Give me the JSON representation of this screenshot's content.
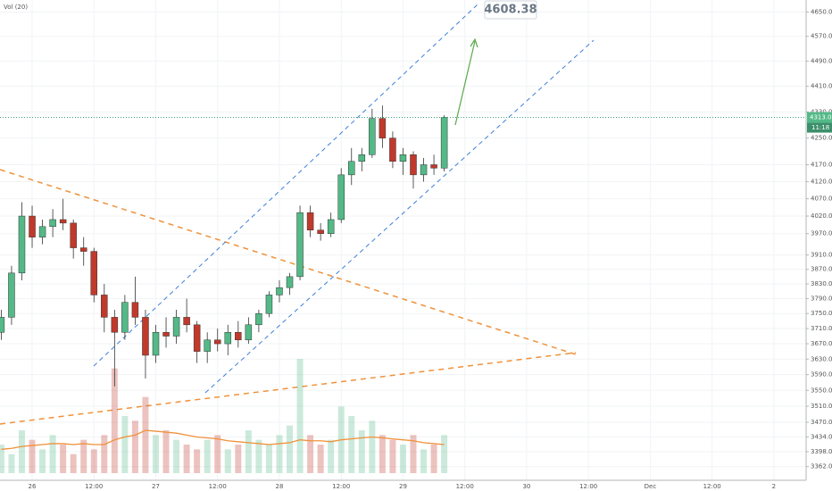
{
  "chart_data": {
    "type": "candlestick",
    "indicator_label": "Vol (20)",
    "annotation": 4608.38,
    "countdown": "11:18",
    "log_scale": true,
    "grid": true,
    "up_color": "#53b987",
    "down_color": "#c0392b",
    "volume_ma_color": "#f0913a",
    "ylim": [
      3340,
      4690
    ],
    "yticks": [
      {
        "value": 4650,
        "label": "4650.00"
      },
      {
        "value": 4570,
        "label": "4570.00"
      },
      {
        "value": 4490,
        "label": "4490.00"
      },
      {
        "value": 4410,
        "label": "4410.00"
      },
      {
        "value": 4330,
        "label": "4330.00"
      },
      {
        "value": 4250,
        "label": "4250.00"
      },
      {
        "value": 4170,
        "label": "4170.00"
      },
      {
        "value": 4120,
        "label": "4120.00"
      },
      {
        "value": 4070,
        "label": "4070.00"
      },
      {
        "value": 4020,
        "label": "4020.00"
      },
      {
        "value": 3970,
        "label": "3970.00"
      },
      {
        "value": 3910,
        "label": "3910.00"
      },
      {
        "value": 3870,
        "label": "3870.00"
      },
      {
        "value": 3830,
        "label": "3830.00"
      },
      {
        "value": 3790,
        "label": "3790.00"
      },
      {
        "value": 3750,
        "label": "3750.00"
      },
      {
        "value": 3710,
        "label": "3710.00"
      },
      {
        "value": 3670,
        "label": "3670.00"
      },
      {
        "value": 3630,
        "label": "3630.00"
      },
      {
        "value": 3590,
        "label": "3590.00"
      },
      {
        "value": 3550,
        "label": "3550.00"
      },
      {
        "value": 3510,
        "label": "3510.00"
      },
      {
        "value": 3470,
        "label": "3470.00"
      },
      {
        "value": 3434,
        "label": "3434.00"
      },
      {
        "value": 3398,
        "label": "3398.00"
      },
      {
        "value": 3362,
        "label": "3362.00"
      }
    ],
    "categories": [
      null,
      null,
      null,
      "26",
      null,
      null,
      null,
      null,
      null,
      "12:00",
      null,
      null,
      null,
      null,
      null,
      "27",
      null,
      null,
      null,
      null,
      null,
      "12:00",
      null,
      null,
      null,
      null,
      null,
      "28",
      null,
      null,
      null,
      null,
      null,
      "12:00",
      null,
      null,
      null,
      null,
      null,
      "29",
      null,
      null,
      null,
      null,
      null,
      "12:00",
      null,
      null,
      null,
      null,
      null,
      "30",
      null,
      null,
      null,
      null,
      null,
      "12:00",
      null,
      null,
      null,
      null,
      null,
      "Dec",
      null,
      null,
      null,
      null,
      null,
      "12:00",
      null,
      null,
      null,
      null,
      null,
      "2",
      null,
      null
    ],
    "open": [
      3700,
      3740,
      3860,
      4020,
      3960,
      3990,
      4010,
      4000,
      3930,
      3920,
      3800,
      3740,
      3700,
      3780,
      3740,
      3640,
      3700,
      3690,
      3740,
      3720,
      3650,
      3680,
      3670,
      3700,
      3680,
      3720,
      3750,
      3800,
      3820,
      3850,
      4030,
      3980,
      3970,
      4010,
      4140,
      4180,
      4200,
      4310,
      4250,
      4180,
      4200,
      4140,
      4170,
      4160,
      null,
      null,
      null,
      null,
      null,
      null,
      null,
      null,
      null,
      null,
      null,
      null,
      null,
      null,
      null,
      null,
      null,
      null,
      null,
      null,
      null,
      null,
      null,
      null,
      null,
      null,
      null,
      null,
      null,
      null,
      null,
      null,
      null,
      null
    ],
    "high": [
      3760,
      3880,
      4060,
      4050,
      4010,
      4040,
      4070,
      4010,
      3960,
      3930,
      3830,
      3760,
      3800,
      3850,
      3760,
      3720,
      3740,
      3760,
      3790,
      3730,
      3700,
      3710,
      3720,
      3730,
      3740,
      3760,
      3810,
      3840,
      3860,
      4050,
      4050,
      4000,
      4030,
      4160,
      4220,
      4220,
      4340,
      4350,
      4270,
      4220,
      4210,
      4190,
      4200,
      4320,
      null,
      null,
      null,
      null,
      null,
      null,
      null,
      null,
      null,
      null,
      null,
      null,
      null,
      null,
      null,
      null,
      null,
      null,
      null,
      null,
      null,
      null,
      null,
      null,
      null,
      null,
      null,
      null,
      null,
      null,
      null,
      null,
      null,
      null
    ],
    "low": [
      3680,
      3720,
      3840,
      3930,
      3940,
      3960,
      3980,
      3900,
      3880,
      3780,
      3700,
      3560,
      3680,
      3720,
      3580,
      3620,
      3660,
      3670,
      3700,
      3620,
      3620,
      3650,
      3640,
      3660,
      3670,
      3700,
      3740,
      3780,
      3800,
      3840,
      3960,
      3950,
      3960,
      4000,
      4110,
      4150,
      4190,
      4220,
      4160,
      4140,
      4100,
      4120,
      4140,
      4150,
      null,
      null,
      null,
      null,
      null,
      null,
      null,
      null,
      null,
      null,
      null,
      null,
      null,
      null,
      null,
      null,
      null,
      null,
      null,
      null,
      null,
      null,
      null,
      null,
      null,
      null,
      null,
      null,
      null,
      null,
      null,
      null,
      null,
      null
    ],
    "close": [
      3740,
      3860,
      4020,
      3960,
      3990,
      4010,
      4000,
      3930,
      3920,
      3800,
      3740,
      3700,
      3780,
      3740,
      3640,
      3700,
      3690,
      3740,
      3720,
      3650,
      3680,
      3670,
      3700,
      3680,
      3720,
      3750,
      3800,
      3820,
      3850,
      4030,
      3980,
      3970,
      4010,
      4140,
      4180,
      4200,
      4310,
      4250,
      4180,
      4200,
      4140,
      4170,
      4160,
      4313.09,
      null,
      null,
      null,
      null,
      null,
      null,
      null,
      null,
      null,
      null,
      null,
      null,
      null,
      null,
      null,
      null,
      null,
      null,
      null,
      null,
      null,
      null,
      null,
      null,
      null,
      null,
      null,
      null,
      null,
      null,
      null,
      null,
      null,
      null
    ],
    "volume": [
      30,
      20,
      45,
      35,
      25,
      40,
      30,
      20,
      35,
      25,
      40,
      110,
      60,
      55,
      80,
      40,
      45,
      35,
      30,
      25,
      35,
      40,
      25,
      30,
      45,
      35,
      30,
      40,
      50,
      120,
      40,
      30,
      35,
      70,
      60,
      45,
      55,
      40,
      35,
      30,
      40,
      25,
      30,
      40,
      null,
      null,
      null,
      null,
      null,
      null,
      null,
      null,
      null,
      null,
      null,
      null,
      null,
      null,
      null,
      null,
      null,
      null,
      null,
      null,
      null,
      null,
      null,
      null,
      null,
      null,
      null,
      null,
      null,
      null,
      null,
      null,
      null,
      null
    ],
    "volume_ma": [
      25,
      26,
      28,
      29,
      30,
      31,
      31,
      30,
      31,
      30,
      30,
      35,
      38,
      40,
      45,
      44,
      43,
      42,
      40,
      38,
      37,
      36,
      34,
      33,
      32,
      31,
      30,
      31,
      32,
      35,
      34,
      34,
      33,
      35,
      36,
      37,
      38,
      37,
      36,
      35,
      34,
      32,
      31,
      30,
      null,
      null,
      null,
      null,
      null,
      null,
      null,
      null,
      null,
      null,
      null,
      null,
      null,
      null,
      null,
      null,
      null,
      null,
      null,
      null,
      null,
      null,
      null,
      null,
      null,
      null,
      null,
      null,
      null,
      null,
      null,
      null,
      null,
      null
    ]
  }
}
